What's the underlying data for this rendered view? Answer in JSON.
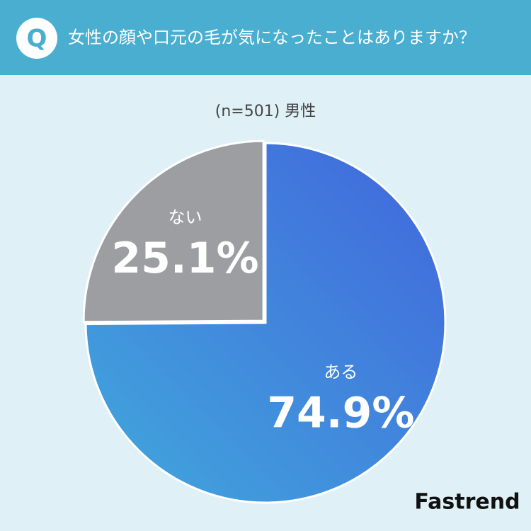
{
  "badge": "Q",
  "brand": "Fastrend",
  "chart_data": {
    "type": "pie",
    "title": "女性の顔や口元の毛が気になったことはありますか？",
    "subtitle": "(n=501) 男性",
    "categories": [
      "ある",
      "ない"
    ],
    "values": [
      74.9,
      25.1
    ],
    "value_labels": [
      "74.9%",
      "25.1%"
    ],
    "colors": [
      "#4166dc",
      "#9d9ea2"
    ]
  }
}
